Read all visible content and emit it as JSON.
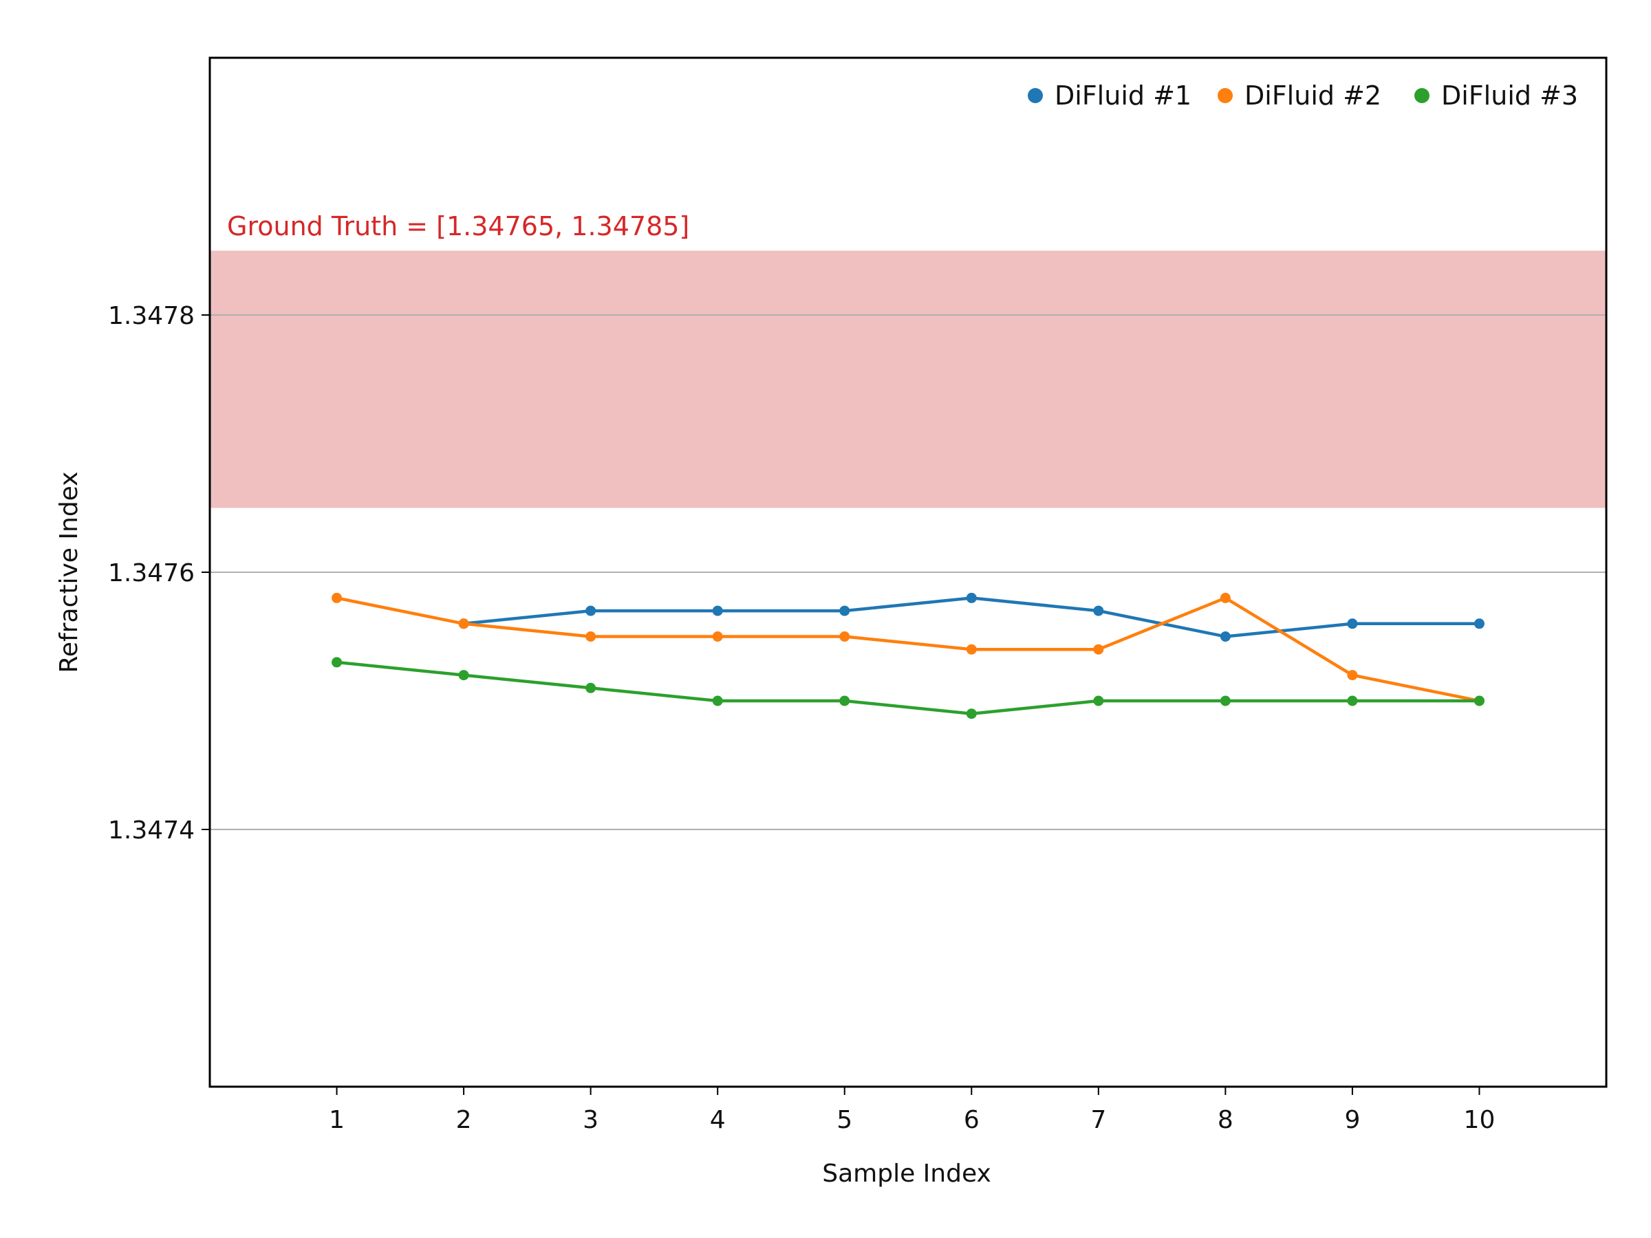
{
  "chart_data": {
    "type": "line",
    "title": "",
    "xlabel": "Sample Index",
    "ylabel": "Refractive Index",
    "x": [
      1,
      2,
      3,
      4,
      5,
      6,
      7,
      8,
      9,
      10
    ],
    "x_tick_labels": [
      "1",
      "2",
      "3",
      "4",
      "5",
      "6",
      "7",
      "8",
      "9",
      "10"
    ],
    "xlim": [
      0,
      11
    ],
    "ylim": [
      1.3472,
      1.348
    ],
    "y_ticks": [
      1.3474,
      1.3476,
      1.3478
    ],
    "y_tick_labels": [
      "1.3474",
      "1.3476",
      "1.3478"
    ],
    "grid": "horizontal",
    "legend_position": "top-right",
    "series": [
      {
        "name": "DiFluid #1",
        "color": "#1f77b4",
        "values": [
          1.34758,
          1.34756,
          1.34757,
          1.34757,
          1.34757,
          1.34758,
          1.34757,
          1.34755,
          1.34756,
          1.34756
        ],
        "line_starts_at_index": 1
      },
      {
        "name": "DiFluid #2",
        "color": "#ff7f0e",
        "values": [
          1.34758,
          1.34756,
          1.34755,
          1.34755,
          1.34755,
          1.34754,
          1.34754,
          1.34758,
          1.34752,
          1.3475
        ]
      },
      {
        "name": "DiFluid #3",
        "color": "#2ca02c",
        "values": [
          1.34753,
          1.34752,
          1.34751,
          1.3475,
          1.3475,
          1.34749,
          1.3475,
          1.3475,
          1.3475,
          1.3475
        ]
      }
    ],
    "band": {
      "label": "Ground Truth = [1.34765, 1.34785]",
      "range": [
        1.34765,
        1.34785
      ],
      "color": "#f0bfbf",
      "label_color": "#d62728"
    }
  }
}
